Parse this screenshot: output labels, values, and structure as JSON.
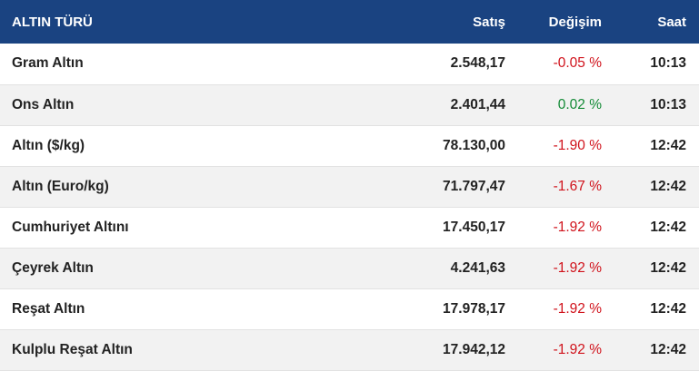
{
  "header": {
    "name": "ALTIN TÜRÜ",
    "sell": "Satış",
    "change": "Değişim",
    "time": "Saat"
  },
  "colors": {
    "header_bg": "#1a4381",
    "negative": "#d0121b",
    "positive": "#138a36",
    "stripe": "#f2f2f2"
  },
  "rows": [
    {
      "name": "Gram Altın",
      "sell": "2.548,17",
      "change": "-0.05 %",
      "direction": "down",
      "time": "10:13"
    },
    {
      "name": "Ons Altın",
      "sell": "2.401,44",
      "change": "0.02 %",
      "direction": "up",
      "time": "10:13"
    },
    {
      "name": "Altın ($/kg)",
      "sell": "78.130,00",
      "change": "-1.90 %",
      "direction": "down",
      "time": "12:42"
    },
    {
      "name": "Altın (Euro/kg)",
      "sell": "71.797,47",
      "change": "-1.67 %",
      "direction": "down",
      "time": "12:42"
    },
    {
      "name": "Cumhuriyet Altını",
      "sell": "17.450,17",
      "change": "-1.92 %",
      "direction": "down",
      "time": "12:42"
    },
    {
      "name": "Çeyrek Altın",
      "sell": "4.241,63",
      "change": "-1.92 %",
      "direction": "down",
      "time": "12:42"
    },
    {
      "name": "Reşat Altın",
      "sell": "17.978,17",
      "change": "-1.92 %",
      "direction": "down",
      "time": "12:42"
    },
    {
      "name": "Kulplu Reşat Altın",
      "sell": "17.942,12",
      "change": "-1.92 %",
      "direction": "down",
      "time": "12:42"
    }
  ]
}
